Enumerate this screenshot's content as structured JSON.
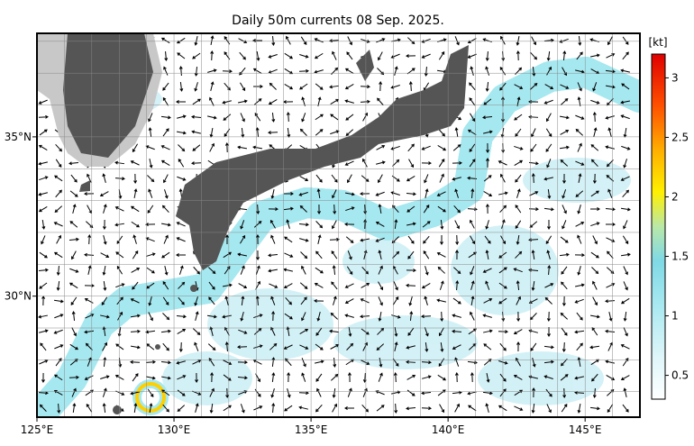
{
  "title": "Daily 50m currents 08 Sep. 2025.",
  "map": {
    "xlim": [
      125,
      147
    ],
    "ylim": [
      26.2,
      38.25
    ],
    "x_ticks": [
      {
        "value": 125,
        "label": "125°E"
      },
      {
        "value": 130,
        "label": "130°E"
      },
      {
        "value": 135,
        "label": "135°E"
      },
      {
        "value": 140,
        "label": "140°E"
      },
      {
        "value": 145,
        "label": "145°E"
      }
    ],
    "y_ticks": [
      {
        "value": 30,
        "label": "30°N"
      },
      {
        "value": 35,
        "label": "35°N"
      }
    ]
  },
  "colorbar": {
    "unit_label": "[kt]",
    "lim": [
      0.3,
      3.2
    ],
    "ticks": [
      0.5,
      1.0,
      1.5,
      2.0,
      2.5,
      3.0
    ]
  }
}
